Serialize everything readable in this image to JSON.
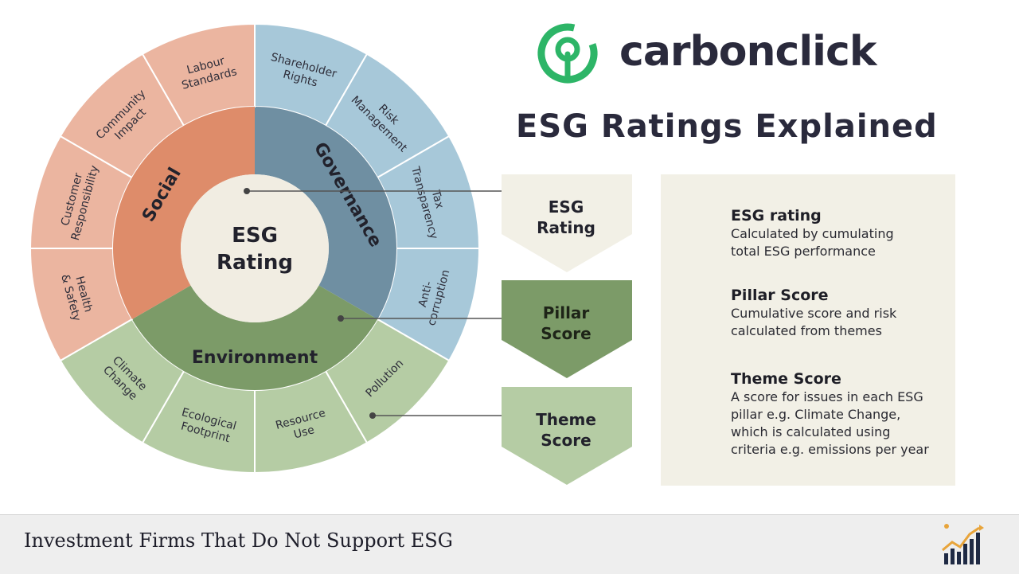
{
  "brand": {
    "name": "carbonclick",
    "logo_icon": "carbonclick-logo-icon",
    "accent_color": "#2db567"
  },
  "title": "ESG Ratings Explained",
  "wheel": {
    "center": [
      "ESG",
      "Rating"
    ],
    "pillars": {
      "social": "Social",
      "governance": "Governance",
      "environment": "Environment"
    },
    "themes": {
      "governance": [
        [
          "Shareholder",
          "Rights"
        ],
        [
          "Risk",
          "Management"
        ],
        [
          "Tax",
          "Transparency"
        ],
        [
          "Anti-",
          "corruption"
        ]
      ],
      "environment": [
        [
          "Pollution"
        ],
        [
          "Resource",
          "Use"
        ],
        [
          "Ecological",
          "Footprint"
        ],
        [
          "Climate",
          "Change"
        ]
      ],
      "social": [
        [
          "Health",
          "& Safety"
        ],
        [
          "Customer",
          "Responsibility"
        ],
        [
          "Community",
          "Impact"
        ],
        [
          "Labour",
          "Standards"
        ]
      ]
    },
    "colors": {
      "social_outer": "#ebb5a0",
      "social_inner": "#de8c6a",
      "governance_outer": "#a7c8d9",
      "governance_inner": "#6f8fa2",
      "environment_outer": "#b5cca4",
      "environment_inner": "#7c9b68",
      "center": "#f1ede2"
    }
  },
  "chevrons": [
    {
      "lines": [
        "ESG",
        "Rating"
      ],
      "fill": "#f2f0e6",
      "text_color": "#22222c"
    },
    {
      "lines": [
        "Pillar",
        "Score"
      ],
      "fill": "#7c9b68",
      "text_color": "#1e2418"
    },
    {
      "lines": [
        "Theme",
        "Score"
      ],
      "fill": "#b5cca4",
      "text_color": "#22222c"
    }
  ],
  "panel": {
    "background": "#f2f0e6",
    "items": [
      {
        "heading": "ESG rating",
        "body": [
          "Calculated by cumulating",
          "total ESG performance"
        ]
      },
      {
        "heading": "Pillar Score",
        "body": [
          "Cumulative score and risk",
          "calculated from themes"
        ]
      },
      {
        "heading": "Theme Score",
        "body": [
          "A score for issues in each ESG",
          "pillar e.g. Climate Change,",
          "which is calculated using",
          "criteria e.g. emissions per year"
        ]
      }
    ]
  },
  "footer": {
    "title": "Investment Firms That Do Not Support ESG",
    "logo_icon": "growth-chart-icon"
  }
}
